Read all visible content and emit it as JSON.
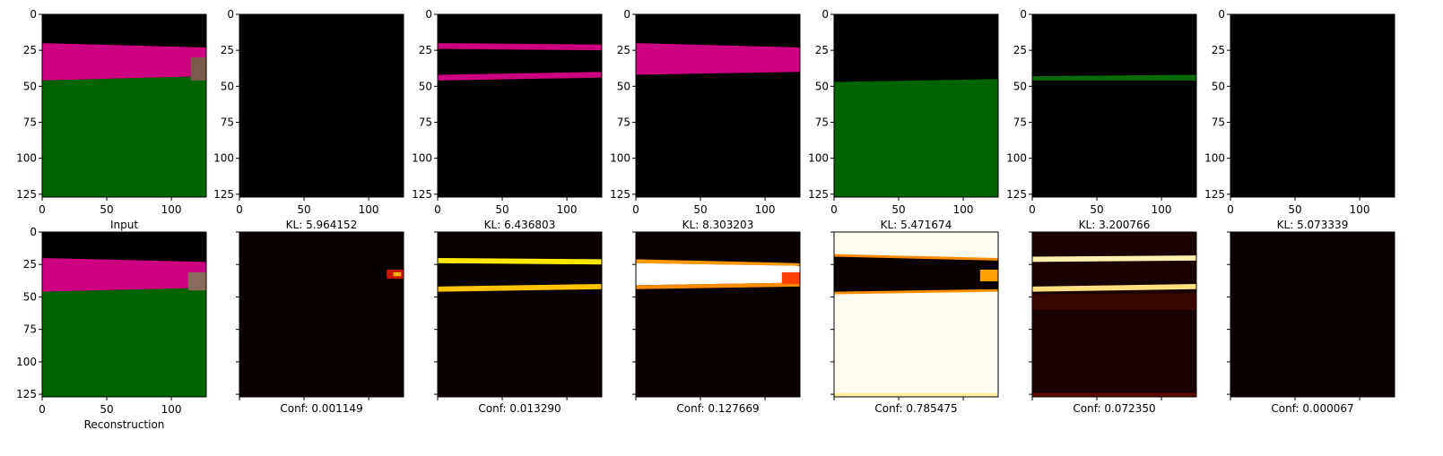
{
  "chart_data": [
    {
      "type": "image",
      "panel": "input",
      "title": "",
      "xlabel": "Input",
      "xlim": [
        0,
        127
      ],
      "ylim": [
        127,
        0
      ],
      "xticks": [
        0,
        50,
        100
      ],
      "yticks": [
        0,
        25,
        50,
        75,
        100,
        125
      ],
      "show_tick_labels": true,
      "image": {
        "kind": "scene",
        "layers": [
          {
            "name": "magenta",
            "color": "#cc0080",
            "top": [
              [
                0,
                20
              ],
              [
                127,
                23
              ]
            ],
            "bottom": [
              [
                0,
                46
              ],
              [
                127,
                43
              ]
            ]
          },
          {
            "name": "green",
            "color": "#006400",
            "top": [
              [
                0,
                46
              ],
              [
                127,
                43
              ]
            ],
            "bottom": [
              [
                0,
                127
              ],
              [
                127,
                127
              ]
            ]
          },
          {
            "name": "object",
            "color": "#7a5a4a",
            "rect": [
              [
                115,
                30
              ],
              [
                127,
                46
              ]
            ]
          }
        ]
      }
    },
    {
      "type": "image",
      "panel": "slot-1",
      "xlabel": "KL: 5.964152",
      "xlim": [
        0,
        127
      ],
      "ylim": [
        127,
        0
      ],
      "xticks": [
        0,
        50,
        100
      ],
      "yticks": [
        0,
        25,
        50,
        75,
        100,
        125
      ],
      "show_tick_labels": true,
      "image": {
        "kind": "mask",
        "layers": []
      }
    },
    {
      "type": "image",
      "panel": "slot-2",
      "xlabel": "KL: 6.436803",
      "xlim": [
        0,
        127
      ],
      "ylim": [
        127,
        0
      ],
      "xticks": [
        0,
        50,
        100
      ],
      "yticks": [
        0,
        25,
        50,
        75,
        100,
        125
      ],
      "show_tick_labels": true,
      "image": {
        "kind": "mask",
        "layers": [
          {
            "name": "band-top",
            "color": "#cc0080",
            "top": [
              [
                0,
                20
              ],
              [
                127,
                21
              ]
            ],
            "bottom": [
              [
                0,
                24
              ],
              [
                127,
                25
              ]
            ]
          },
          {
            "name": "band-bottom",
            "color": "#cc0080",
            "top": [
              [
                0,
                42
              ],
              [
                127,
                40
              ]
            ],
            "bottom": [
              [
                0,
                46
              ],
              [
                127,
                44
              ]
            ]
          }
        ]
      }
    },
    {
      "type": "image",
      "panel": "slot-3",
      "xlabel": "KL: 8.303203",
      "xlim": [
        0,
        127
      ],
      "ylim": [
        127,
        0
      ],
      "xticks": [
        0,
        50,
        100
      ],
      "yticks": [
        0,
        25,
        50,
        75,
        100,
        125
      ],
      "show_tick_labels": true,
      "image": {
        "kind": "mask",
        "layers": [
          {
            "name": "magenta",
            "color": "#cc0080",
            "top": [
              [
                0,
                20
              ],
              [
                127,
                23
              ]
            ],
            "bottom": [
              [
                0,
                42
              ],
              [
                127,
                40
              ]
            ]
          }
        ]
      }
    },
    {
      "type": "image",
      "panel": "slot-4",
      "xlabel": "KL: 5.471674",
      "xlim": [
        0,
        127
      ],
      "ylim": [
        127,
        0
      ],
      "xticks": [
        0,
        50,
        100
      ],
      "yticks": [
        0,
        25,
        50,
        75,
        100,
        125
      ],
      "show_tick_labels": true,
      "image": {
        "kind": "mask",
        "layers": [
          {
            "name": "green",
            "color": "#006400",
            "top": [
              [
                0,
                47
              ],
              [
                127,
                45
              ]
            ],
            "bottom": [
              [
                0,
                127
              ],
              [
                127,
                127
              ]
            ]
          }
        ]
      }
    },
    {
      "type": "image",
      "panel": "slot-5",
      "xlabel": "KL: 3.200766",
      "xlim": [
        0,
        127
      ],
      "ylim": [
        127,
        0
      ],
      "xticks": [
        0,
        50,
        100
      ],
      "yticks": [
        0,
        25,
        50,
        75,
        100,
        125
      ],
      "show_tick_labels": true,
      "image": {
        "kind": "mask",
        "layers": [
          {
            "name": "green-line",
            "color": "#0c6a0c",
            "top": [
              [
                0,
                43
              ],
              [
                127,
                42
              ]
            ],
            "bottom": [
              [
                0,
                46
              ],
              [
                127,
                46
              ]
            ]
          }
        ]
      }
    },
    {
      "type": "image",
      "panel": "slot-6",
      "xlabel": "KL: 5.073339",
      "xlim": [
        0,
        127
      ],
      "ylim": [
        127,
        0
      ],
      "xticks": [
        0,
        50,
        100
      ],
      "yticks": [
        0,
        25,
        50,
        75,
        100,
        125
      ],
      "show_tick_labels": true,
      "image": {
        "kind": "mask",
        "layers": []
      }
    },
    {
      "type": "image",
      "panel": "reconstruction",
      "xlabel": "Reconstruction",
      "xlim": [
        0,
        127
      ],
      "ylim": [
        127,
        0
      ],
      "xticks": [
        0,
        50,
        100
      ],
      "yticks": [
        0,
        25,
        50,
        75,
        100,
        125
      ],
      "show_tick_labels": true,
      "image": {
        "kind": "scene",
        "layers": [
          {
            "name": "magenta",
            "color": "#cc0080",
            "top": [
              [
                0,
                20
              ],
              [
                127,
                23
              ]
            ],
            "bottom": [
              [
                0,
                46
              ],
              [
                127,
                43
              ]
            ]
          },
          {
            "name": "green",
            "color": "#006400",
            "top": [
              [
                0,
                46
              ],
              [
                127,
                43
              ]
            ],
            "bottom": [
              [
                0,
                127
              ],
              [
                127,
                127
              ]
            ]
          },
          {
            "name": "object",
            "color": "#8a6a5a",
            "rect": [
              [
                113,
                31
              ],
              [
                127,
                45
              ]
            ]
          }
        ]
      }
    },
    {
      "type": "heatmap",
      "panel": "conf-1",
      "xlabel": "Conf: 0.001149",
      "show_tick_labels": false,
      "xticks": [
        0,
        50,
        100
      ],
      "yticks": [
        0,
        25,
        50,
        75,
        100,
        125
      ],
      "xlim": [
        0,
        127
      ],
      "ylim": [
        127,
        0
      ],
      "image": {
        "kind": "heat",
        "background": "#0a0000",
        "layers": [
          {
            "name": "hot-spot",
            "color": "#c81800",
            "rect": [
              [
                114,
                29
              ],
              [
                127,
                36
              ]
            ]
          },
          {
            "name": "hot-core",
            "color": "#ffb000",
            "rect": [
              [
                119,
                31
              ],
              [
                125,
                34
              ]
            ]
          }
        ]
      }
    },
    {
      "type": "heatmap",
      "panel": "conf-2",
      "xlabel": "Conf: 0.013290",
      "show_tick_labels": false,
      "xticks": [
        0,
        50,
        100
      ],
      "yticks": [
        0,
        25,
        50,
        75,
        100,
        125
      ],
      "xlim": [
        0,
        127
      ],
      "ylim": [
        127,
        0
      ],
      "image": {
        "kind": "heat",
        "background": "#0a0000",
        "layers": [
          {
            "name": "band-top",
            "color": "#ffe800",
            "top": [
              [
                0,
                20
              ],
              [
                127,
                21
              ]
            ],
            "bottom": [
              [
                0,
                24
              ],
              [
                127,
                25
              ]
            ]
          },
          {
            "name": "band-bottom",
            "color": "#ffc400",
            "top": [
              [
                0,
                42
              ],
              [
                127,
                40
              ]
            ],
            "bottom": [
              [
                0,
                46
              ],
              [
                127,
                44
              ]
            ]
          }
        ]
      }
    },
    {
      "type": "heatmap",
      "panel": "conf-3",
      "xlabel": "Conf: 0.127669",
      "show_tick_labels": false,
      "xticks": [
        0,
        50,
        100
      ],
      "yticks": [
        0,
        25,
        50,
        75,
        100,
        125
      ],
      "xlim": [
        0,
        127
      ],
      "ylim": [
        127,
        0
      ],
      "image": {
        "kind": "heat",
        "background": "#0a0000",
        "layers": [
          {
            "name": "edge-top",
            "color": "#ff9a00",
            "top": [
              [
                0,
                21
              ],
              [
                127,
                24
              ]
            ],
            "bottom": [
              [
                0,
                24
              ],
              [
                127,
                26
              ]
            ]
          },
          {
            "name": "band",
            "color": "#ffffff",
            "top": [
              [
                0,
                24
              ],
              [
                127,
                26
              ]
            ],
            "bottom": [
              [
                0,
                41
              ],
              [
                127,
                39
              ]
            ]
          },
          {
            "name": "edge-bottom",
            "color": "#ff8c00",
            "top": [
              [
                0,
                41
              ],
              [
                127,
                39
              ]
            ],
            "bottom": [
              [
                0,
                44
              ],
              [
                127,
                42
              ]
            ]
          },
          {
            "name": "object",
            "color": "#ff4000",
            "rect": [
              [
                113,
                31
              ],
              [
                127,
                40
              ]
            ]
          }
        ]
      }
    },
    {
      "type": "heatmap",
      "panel": "conf-4",
      "xlabel": "Conf: 0.785475",
      "show_tick_labels": false,
      "xticks": [
        0,
        50,
        100
      ],
      "yticks": [
        0,
        25,
        50,
        75,
        100,
        125
      ],
      "xlim": [
        0,
        127
      ],
      "ylim": [
        127,
        0
      ],
      "image": {
        "kind": "heat",
        "background": "#fffdf0",
        "layers": [
          {
            "name": "dark-band",
            "color": "#0a0000",
            "top": [
              [
                0,
                18
              ],
              [
                127,
                21
              ]
            ],
            "bottom": [
              [
                0,
                47
              ],
              [
                127,
                45
              ]
            ]
          },
          {
            "name": "edge-top",
            "color": "#ff8a00",
            "top": [
              [
                0,
                17
              ],
              [
                127,
                20
              ]
            ],
            "bottom": [
              [
                0,
                19
              ],
              [
                127,
                22
              ]
            ]
          },
          {
            "name": "edge-bottom",
            "color": "#ff9000",
            "top": [
              [
                0,
                46
              ],
              [
                127,
                44
              ]
            ],
            "bottom": [
              [
                0,
                48
              ],
              [
                127,
                46
              ]
            ]
          },
          {
            "name": "object",
            "color": "#ffa000",
            "rect": [
              [
                113,
                29
              ],
              [
                127,
                38
              ]
            ]
          },
          {
            "name": "floor",
            "color": "#fff0a0",
            "top": [
              [
                0,
                124
              ],
              [
                127,
                124
              ]
            ],
            "bottom": [
              [
                0,
                127
              ],
              [
                127,
                127
              ]
            ]
          }
        ]
      }
    },
    {
      "type": "heatmap",
      "panel": "conf-5",
      "xlabel": "Conf: 0.072350",
      "show_tick_labels": false,
      "xticks": [
        0,
        50,
        100
      ],
      "yticks": [
        0,
        25,
        50,
        75,
        100,
        125
      ],
      "xlim": [
        0,
        127
      ],
      "ylim": [
        127,
        0
      ],
      "image": {
        "kind": "heat",
        "background": "#1a0200",
        "layers": [
          {
            "name": "line-top",
            "color": "#fff0b0",
            "top": [
              [
                0,
                19
              ],
              [
                127,
                18
              ]
            ],
            "bottom": [
              [
                0,
                23
              ],
              [
                127,
                22
              ]
            ]
          },
          {
            "name": "line-bottom",
            "color": "#ffe080",
            "top": [
              [
                0,
                42
              ],
              [
                127,
                40
              ]
            ],
            "bottom": [
              [
                0,
                46
              ],
              [
                127,
                44
              ]
            ]
          },
          {
            "name": "haze",
            "color": "#3a0800",
            "top": [
              [
                0,
                48
              ],
              [
                127,
                47
              ]
            ],
            "bottom": [
              [
                0,
                60
              ],
              [
                127,
                60
              ]
            ]
          },
          {
            "name": "floor",
            "color": "#5a0c00",
            "top": [
              [
                0,
                124
              ],
              [
                127,
                124
              ]
            ],
            "bottom": [
              [
                0,
                127
              ],
              [
                127,
                127
              ]
            ]
          }
        ]
      }
    },
    {
      "type": "heatmap",
      "panel": "conf-6",
      "xlabel": "Conf: 0.000067",
      "show_tick_labels": false,
      "xticks": [
        0,
        50,
        100
      ],
      "yticks": [
        0,
        25,
        50,
        75,
        100,
        125
      ],
      "xlim": [
        0,
        127
      ],
      "ylim": [
        127,
        0
      ],
      "image": {
        "kind": "heat",
        "background": "#0a0000",
        "layers": []
      }
    }
  ]
}
